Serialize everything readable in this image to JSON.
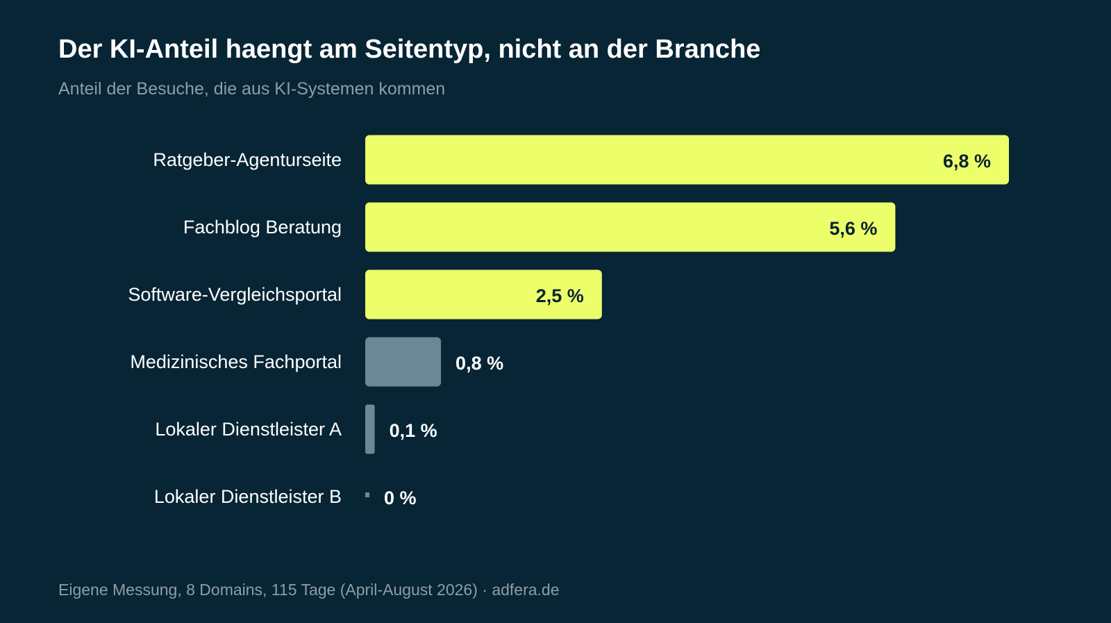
{
  "header": {
    "title": "Der KI-Anteil haengt am Seitentyp, nicht an der Branche",
    "subtitle": "Anteil der Besuche, die aus KI-Systemen kommen"
  },
  "footer": {
    "source": "Eigene Messung, 8 Domains, 115 Tage (April-August 2026) · adfera.de"
  },
  "colors": {
    "background": "#072534",
    "highlight_bar": "#ecff6b",
    "muted_bar": "#6c8896",
    "label_on_bar": "#0b2230",
    "label_off_bar": "#ffffff"
  },
  "chart_data": {
    "type": "bar",
    "orientation": "horizontal",
    "title": "Der KI-Anteil haengt am Seitentyp, nicht an der Branche",
    "subtitle": "Anteil der Besuche, die aus KI-Systemen kommen",
    "xlabel": "",
    "ylabel": "",
    "unit": "%",
    "xlim": [
      0,
      6.8
    ],
    "grid": false,
    "legend": "none",
    "categories": [
      "Ratgeber-Agenturseite",
      "Fachblog Beratung",
      "Software-Vergleichsportal",
      "Medizinisches Fachportal",
      "Lokaler Dienstleister A",
      "Lokaler Dienstleister B"
    ],
    "values": [
      6.8,
      5.6,
      2.5,
      0.8,
      0.1,
      0
    ],
    "value_labels": [
      "6,8 %",
      "5,6 %",
      "2,5 %",
      "0,8 %",
      "0,1 %",
      "0 %"
    ],
    "highlighted": [
      true,
      true,
      true,
      false,
      false,
      false
    ]
  }
}
